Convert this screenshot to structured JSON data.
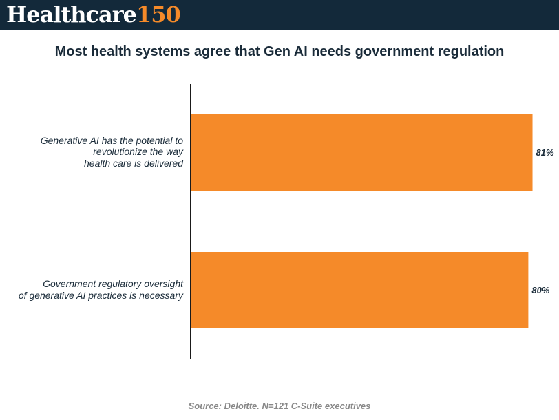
{
  "header": {
    "logo_word": "Healthcare",
    "logo_number": "150"
  },
  "chart_data": {
    "type": "bar",
    "orientation": "horizontal",
    "title": "Most health systems agree that Gen AI needs government regulation",
    "categories": [
      [
        "Generative AI has the potential to",
        "revolutionize the way",
        "health care is delivered"
      ],
      [
        "Government regulatory oversight",
        "of generative AI practices is necessary"
      ]
    ],
    "values": [
      81,
      80
    ],
    "value_labels": [
      "81%",
      "80%"
    ],
    "xlim": [
      0,
      100
    ],
    "grid": false,
    "legend": "none",
    "bar_color": "#f58a29",
    "source": "Source: Deloitte. N=121 C-Suite executives"
  }
}
